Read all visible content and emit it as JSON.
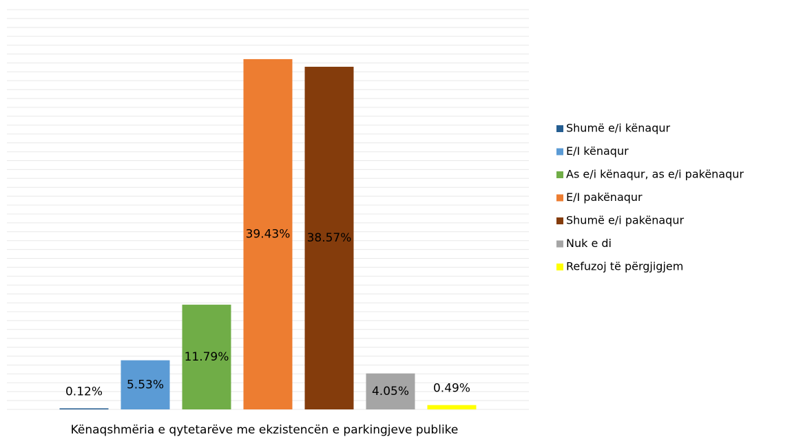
{
  "chart_data": {
    "type": "bar",
    "categories": [
      "Kënaqshmëria e qytetarëve me ekzistencën e parkingjeve publike"
    ],
    "series": [
      {
        "name": "Shumë e/i kënaqur",
        "color": "#255e91",
        "values": [
          0.12
        ],
        "value_labels": [
          "0.12%"
        ]
      },
      {
        "name": "E/I kënaqur",
        "color": "#5b9bd5",
        "values": [
          5.53
        ],
        "value_labels": [
          "5.53%"
        ]
      },
      {
        "name": "As e/i kënaqur, as e/i pakënaqur",
        "color": "#70ad47",
        "values": [
          11.79
        ],
        "value_labels": [
          "11.79%"
        ]
      },
      {
        "name": "E/I pakënaqur",
        "color": "#ed7d31",
        "values": [
          39.43
        ],
        "value_labels": [
          "39.43%"
        ]
      },
      {
        "name": "Shumë e/i pakënaqur",
        "color": "#843c0c",
        "values": [
          38.57
        ],
        "value_labels": [
          "38.57%"
        ]
      },
      {
        "name": "Nuk e di",
        "color": "#a5a5a5",
        "values": [
          4.05
        ],
        "value_labels": [
          "4.05%"
        ]
      },
      {
        "name": "Refuzoj të përgjigjem",
        "color": "#ffff00",
        "values": [
          0.49
        ],
        "value_labels": [
          "0.49%"
        ]
      }
    ],
    "ylim": [
      0,
      45
    ],
    "yticks": [
      0,
      1,
      2,
      3,
      4,
      5,
      6,
      7,
      8,
      9,
      10,
      11,
      12,
      13,
      14,
      15,
      16,
      17,
      18,
      19,
      20,
      21,
      22,
      23,
      24,
      25,
      26,
      27,
      28,
      29,
      30,
      31,
      32,
      33,
      34,
      35,
      36,
      37,
      38,
      39,
      40,
      41,
      42,
      43,
      44,
      45
    ],
    "grid": true,
    "legend": "right"
  }
}
